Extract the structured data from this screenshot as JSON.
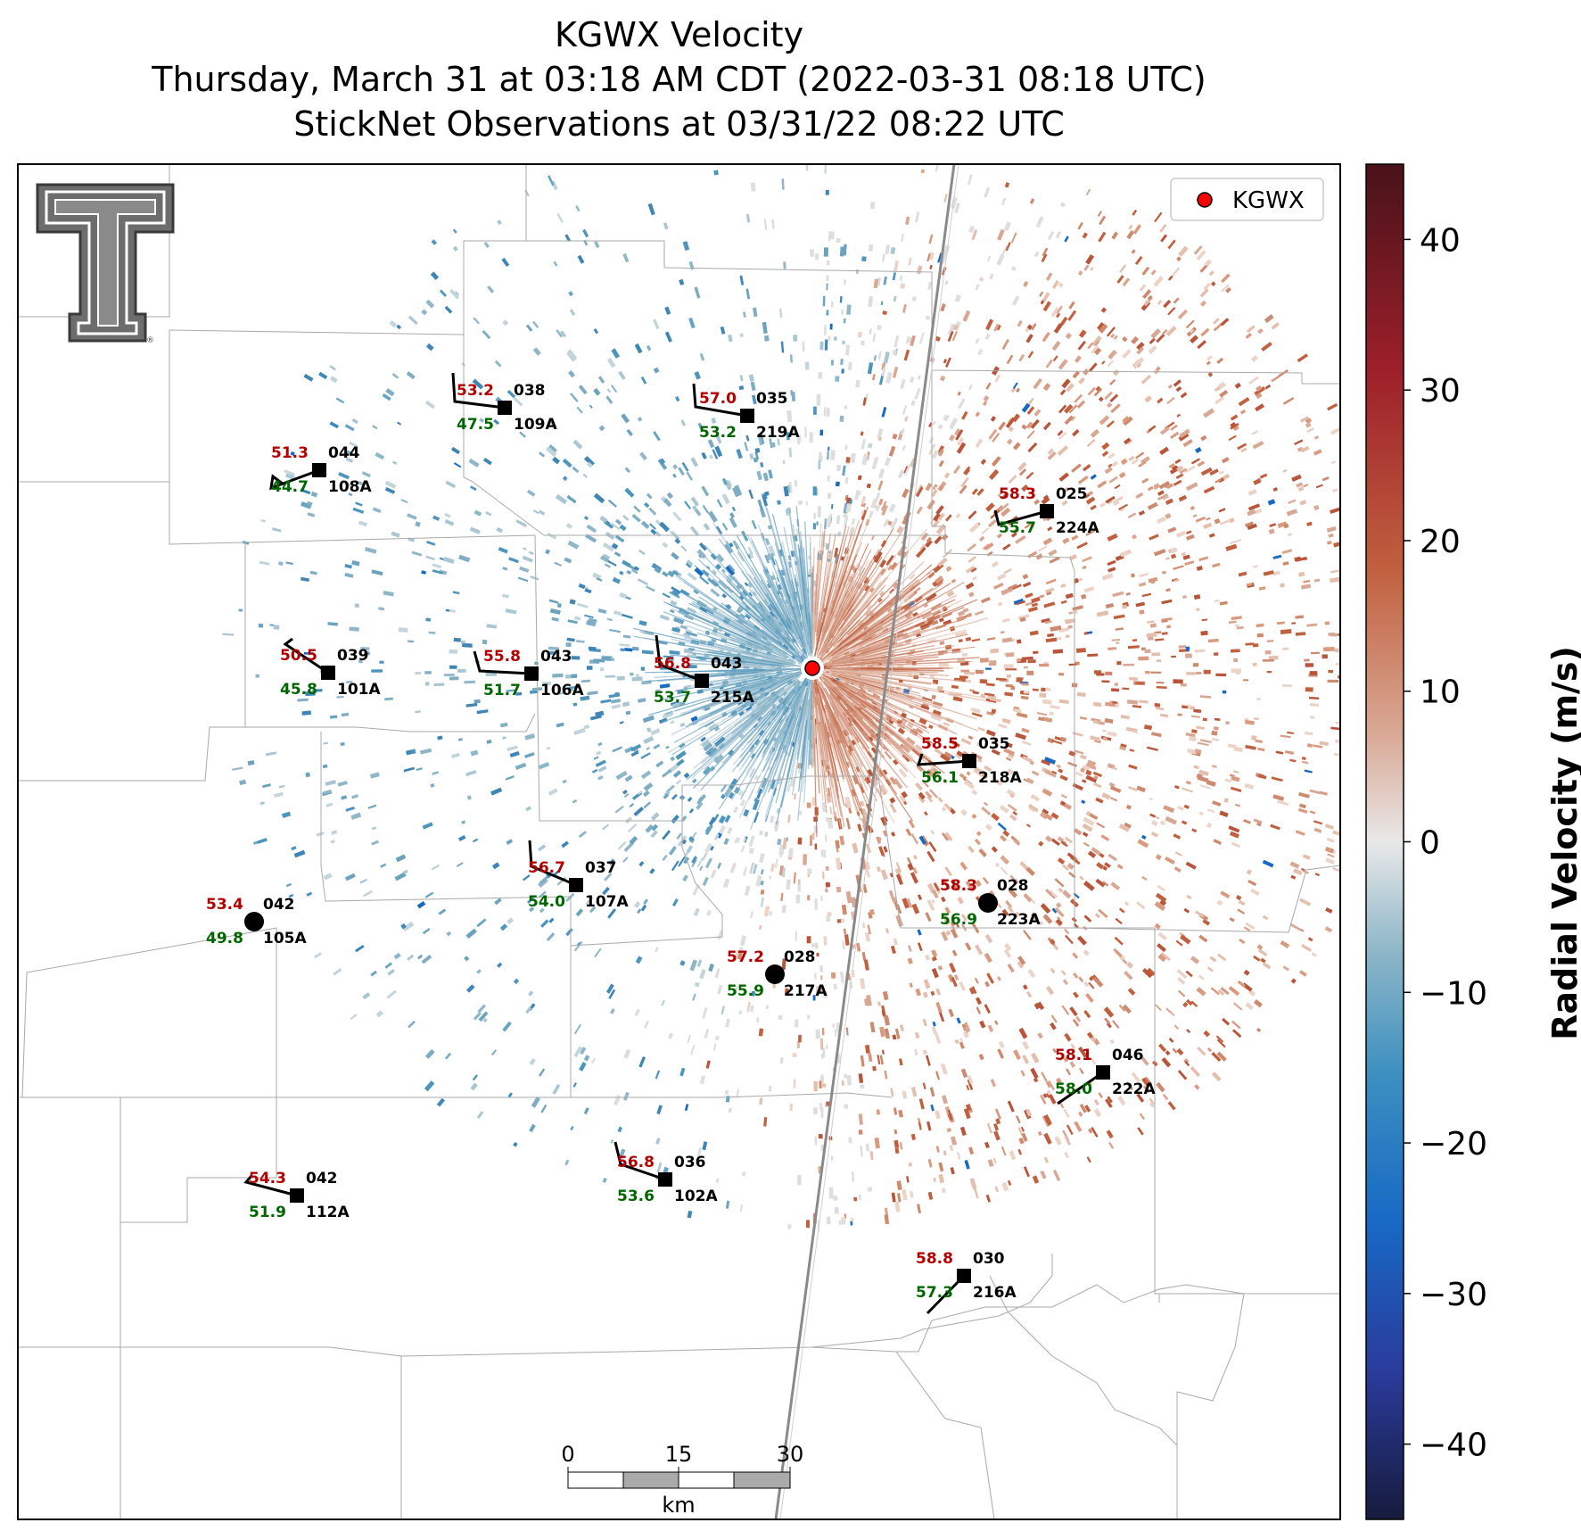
{
  "title": {
    "line1": "KGWX Velocity",
    "line2": "Thursday, March 31 at 03:18 AM CDT (2022-03-31 08:18 UTC)",
    "line3": "StickNet Observations at 03/31/22 08:22 UTC"
  },
  "legend": {
    "label": "KGWX",
    "color": "#ff0000"
  },
  "colorbar": {
    "label": "Radial Velocity (m/s)",
    "ticks": [
      "40",
      "30",
      "20",
      "10",
      "0",
      "−10",
      "−20",
      "−30",
      "−40"
    ],
    "tick_values": [
      40,
      30,
      20,
      10,
      0,
      -10,
      -20,
      -30,
      -40
    ],
    "range": [
      -45,
      45
    ],
    "colors": [
      "#171b3d",
      "#2a3b9c",
      "#1769c4",
      "#3d90c0",
      "#8fb7c8",
      "#e8e8e8",
      "#d9a894",
      "#c1603f",
      "#9c1f2a",
      "#48121a"
    ]
  },
  "scale_bar": {
    "ticks": [
      "0",
      "15",
      "30"
    ],
    "unit": "km"
  },
  "logo": {
    "name": "Texas Tech double-T logo"
  },
  "stations": [
    {
      "id": "109A",
      "temp": "53.2",
      "dew": "47.5",
      "dir": "038",
      "marker": "square"
    },
    {
      "id": "219A",
      "temp": "57.0",
      "dew": "53.2",
      "dir": "035",
      "marker": "square"
    },
    {
      "id": "108A",
      "temp": "51.3",
      "dew": "44.7",
      "dir": "044",
      "marker": "square"
    },
    {
      "id": "224A",
      "temp": "58.3",
      "dew": "55.7",
      "dir": "025",
      "marker": "square"
    },
    {
      "id": "101A",
      "temp": "50.5",
      "dew": "45.8",
      "dir": "039",
      "marker": "square"
    },
    {
      "id": "106A",
      "temp": "55.8",
      "dew": "51.7",
      "dir": "043",
      "marker": "square"
    },
    {
      "id": "215A",
      "temp": "56.8",
      "dew": "53.7",
      "dir": "043",
      "marker": "square"
    },
    {
      "id": "218A",
      "temp": "58.5",
      "dew": "56.1",
      "dir": "035",
      "marker": "square"
    },
    {
      "id": "107A",
      "temp": "56.7",
      "dew": "54.0",
      "dir": "037",
      "marker": "square"
    },
    {
      "id": "223A",
      "temp": "58.3",
      "dew": "56.9",
      "dir": "028",
      "marker": "circle"
    },
    {
      "id": "105A",
      "temp": "53.4",
      "dew": "49.8",
      "dir": "042",
      "marker": "circle"
    },
    {
      "id": "217A",
      "temp": "57.2",
      "dew": "55.9",
      "dir": "028",
      "marker": "circle"
    },
    {
      "id": "222A",
      "temp": "58.1",
      "dew": "58.0",
      "dir": "046",
      "marker": "square"
    },
    {
      "id": "112A",
      "temp": "54.3",
      "dew": "51.9",
      "dir": "042",
      "marker": "square"
    },
    {
      "id": "102A",
      "temp": "56.8",
      "dew": "53.6",
      "dir": "036",
      "marker": "square"
    },
    {
      "id": "216A",
      "temp": "58.8",
      "dew": "57.3",
      "dir": "030",
      "marker": "square"
    }
  ]
}
